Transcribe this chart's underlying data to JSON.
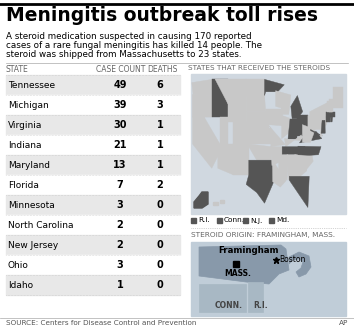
{
  "title": "Meningitis outbreak toll rises",
  "subtitle_line1": "A steroid medication suspected in causing 170 reported",
  "subtitle_line2": "cases of a rare fungal meningitis has killed 14 people. The",
  "subtitle_line3": "steroid was shipped from Massachusetts to 23 states.",
  "col_header_state": "STATE",
  "col_header_count": "CASE COUNT",
  "col_header_deaths": "DEATHS",
  "map_header": "STATES THAT RECEIVED THE STEROIDS",
  "states": [
    "Tennessee",
    "Michigan",
    "Virginia",
    "Indiana",
    "Maryland",
    "Florida",
    "Minnesota",
    "North Carolina",
    "New Jersey",
    "Ohio",
    "Idaho"
  ],
  "case_counts": [
    49,
    39,
    30,
    21,
    13,
    7,
    3,
    2,
    2,
    3,
    1
  ],
  "deaths": [
    6,
    3,
    1,
    1,
    1,
    2,
    0,
    0,
    0,
    0,
    0
  ],
  "source_text": "SOURCE: Centers for Disease Control and Prevention",
  "ap_text": "AP",
  "legend_items": [
    "R.I.",
    "Conn.",
    "N.J.",
    "Md."
  ],
  "origin_label": "STEROID ORIGIN: FRAMINGHAM, MASS.",
  "framingham_label": "Framingham",
  "mass_label": "MASS.",
  "boston_label": "Boston",
  "conn_label": "CONN.",
  "ri_label": "R.I.",
  "bg_color": "#ffffff",
  "table_row_alt": "#e8e8e8",
  "header_color": "#666666",
  "dark_state_color": "#555555",
  "light_state_color": "#c8c8c8",
  "map_ocean": "#d0d8e0",
  "detail_ocean": "#c0cdd8",
  "detail_ma_color": "#8899aa",
  "detail_ct_ri_color": "#a8b8c4"
}
